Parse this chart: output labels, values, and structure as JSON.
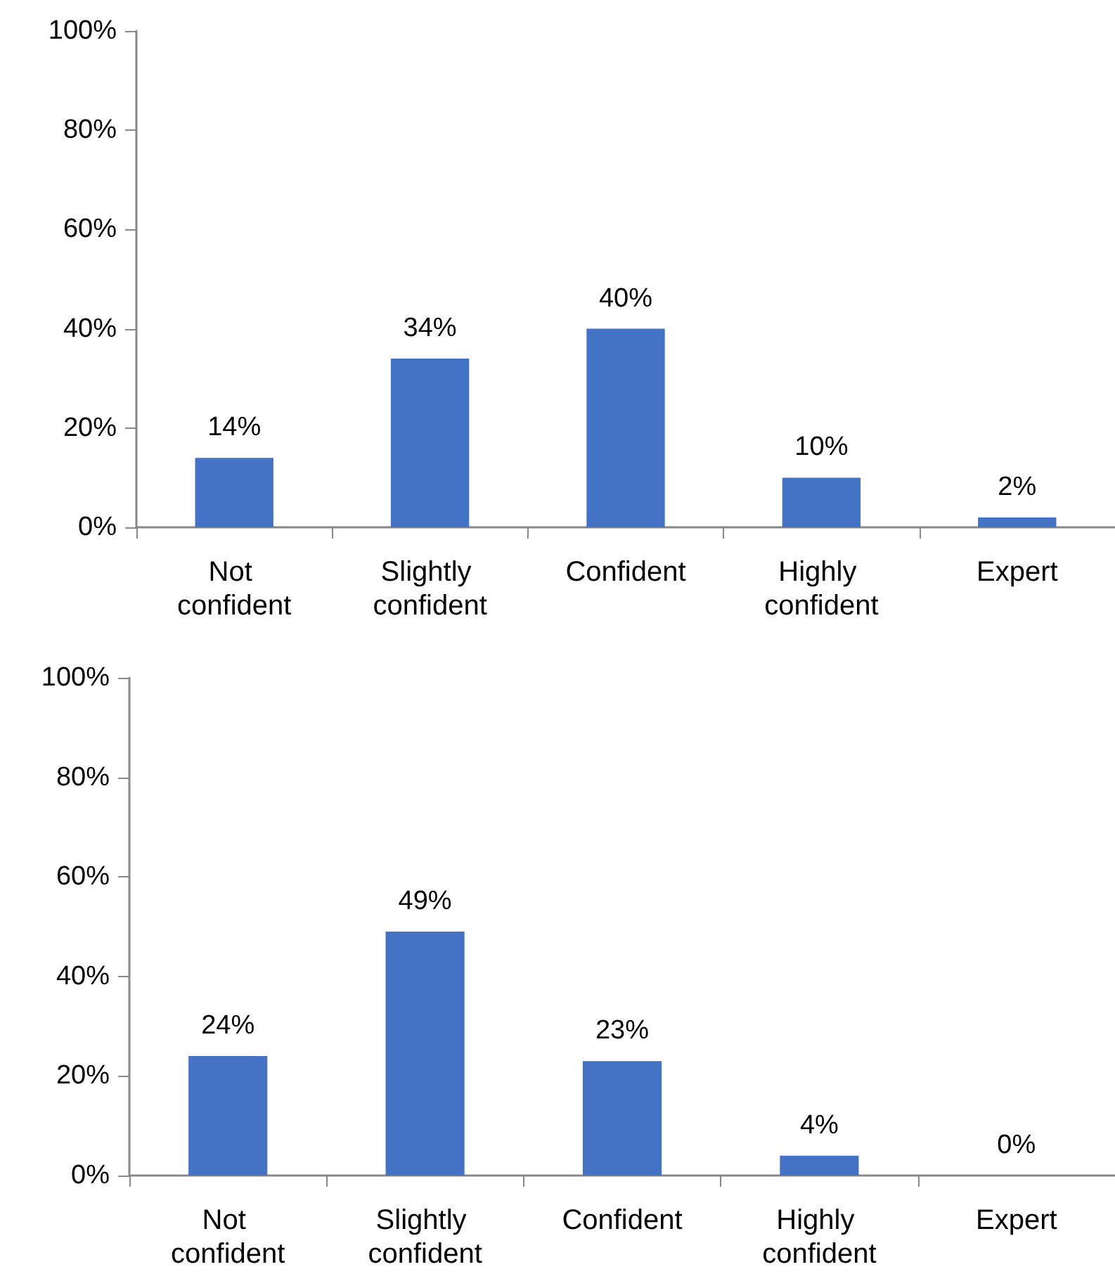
{
  "chart_data": [
    {
      "type": "bar",
      "categories": [
        "Not confident",
        "Slightly confident",
        "Confident",
        "Highly confident",
        "Expert"
      ],
      "values": [
        14,
        34,
        40,
        10,
        2
      ],
      "value_labels": [
        "14%",
        "34%",
        "40%",
        "10%",
        "2%"
      ],
      "color": "#4472c4",
      "ylim": [
        0,
        100
      ],
      "yticks": [
        {
          "value": 0,
          "label": "0%"
        },
        {
          "value": 20,
          "label": "20%"
        },
        {
          "value": 40,
          "label": "40%"
        },
        {
          "value": 60,
          "label": "60%"
        },
        {
          "value": 80,
          "label": "80%"
        },
        {
          "value": 100,
          "label": "100%"
        }
      ],
      "grid": false
    },
    {
      "type": "bar",
      "categories": [
        "Not confident",
        "Slightly confident",
        "Confident",
        "Highly confident",
        "Expert"
      ],
      "values": [
        24,
        49,
        23,
        4,
        0
      ],
      "value_labels": [
        "24%",
        "49%",
        "23%",
        "4%",
        "0%"
      ],
      "color": "#4472c4",
      "ylim": [
        0,
        100
      ],
      "yticks": [
        {
          "value": 0,
          "label": "0%"
        },
        {
          "value": 20,
          "label": "20%"
        },
        {
          "value": 40,
          "label": "40%"
        },
        {
          "value": 60,
          "label": "60%"
        },
        {
          "value": 80,
          "label": "80%"
        },
        {
          "value": 100,
          "label": "100%"
        }
      ],
      "grid": false
    }
  ]
}
